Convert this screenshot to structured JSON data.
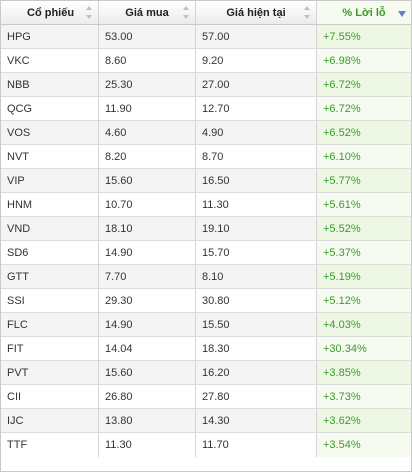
{
  "table": {
    "columns": [
      {
        "label": "Cổ phiếu",
        "sortable": true,
        "sort": "none"
      },
      {
        "label": "Giá mua",
        "sortable": true,
        "sort": "none"
      },
      {
        "label": "Giá hiện tại",
        "sortable": true,
        "sort": "none"
      },
      {
        "label": "% Lời lỗ",
        "sortable": true,
        "sort": "descending"
      }
    ],
    "rows": [
      {
        "stock": "HPG",
        "buy_price": "53.00",
        "current_price": "57.00",
        "pct": "+7.55%"
      },
      {
        "stock": "VKC",
        "buy_price": "8.60",
        "current_price": "9.20",
        "pct": "+6.98%"
      },
      {
        "stock": "NBB",
        "buy_price": "25.30",
        "current_price": "27.00",
        "pct": "+6.72%"
      },
      {
        "stock": "QCG",
        "buy_price": "11.90",
        "current_price": "12.70",
        "pct": "+6.72%"
      },
      {
        "stock": "VOS",
        "buy_price": "4.60",
        "current_price": "4.90",
        "pct": "+6.52%"
      },
      {
        "stock": "NVT",
        "buy_price": "8.20",
        "current_price": "8.70",
        "pct": "+6.10%"
      },
      {
        "stock": "VIP",
        "buy_price": "15.60",
        "current_price": "16.50",
        "pct": "+5.77%"
      },
      {
        "stock": "HNM",
        "buy_price": "10.70",
        "current_price": "11.30",
        "pct": "+5.61%"
      },
      {
        "stock": "VND",
        "buy_price": "18.10",
        "current_price": "19.10",
        "pct": "+5.52%"
      },
      {
        "stock": "SD6",
        "buy_price": "14.90",
        "current_price": "15.70",
        "pct": "+5.37%"
      },
      {
        "stock": "GTT",
        "buy_price": "7.70",
        "current_price": "8.10",
        "pct": "+5.19%"
      },
      {
        "stock": "SSI",
        "buy_price": "29.30",
        "current_price": "30.80",
        "pct": "+5.12%"
      },
      {
        "stock": "FLC",
        "buy_price": "14.90",
        "current_price": "15.50",
        "pct": "+4.03%"
      },
      {
        "stock": "FIT",
        "buy_price": "14.04",
        "current_price": "18.30",
        "pct": "+30.34%"
      },
      {
        "stock": "PVT",
        "buy_price": "15.60",
        "current_price": "16.20",
        "pct": "+3.85%"
      },
      {
        "stock": "CII",
        "buy_price": "26.80",
        "current_price": "27.80",
        "pct": "+3.73%"
      },
      {
        "stock": "IJC",
        "buy_price": "13.80",
        "current_price": "14.30",
        "pct": "+3.62%"
      },
      {
        "stock": "TTF",
        "buy_price": "11.30",
        "current_price": "11.70",
        "pct": "+3.54%"
      }
    ]
  },
  "colors": {
    "positive": "#3c9a2e",
    "sort_active": "#6b79d6"
  },
  "icons": {
    "sortable": "sort-arrows-icon",
    "sorted_desc": "sort-desc-icon"
  }
}
